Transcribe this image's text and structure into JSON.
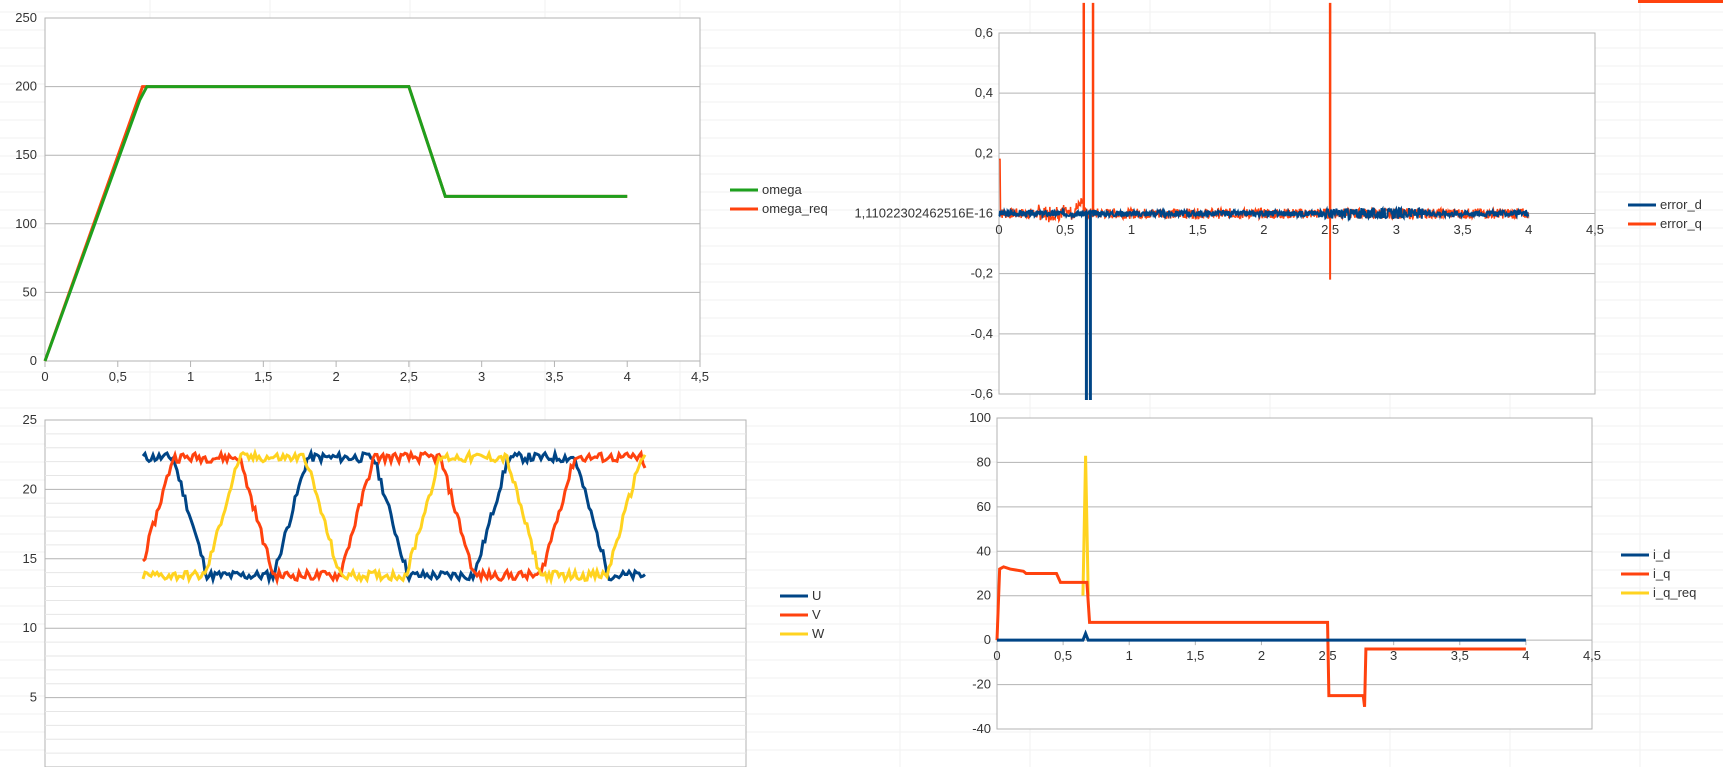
{
  "chart_data": [
    {
      "type": "line",
      "title": "",
      "xlabel": "",
      "ylabel": "",
      "xlim": [
        0,
        4.5
      ],
      "ylim": [
        0,
        250
      ],
      "x_tick_labels": [
        "0",
        "0,5",
        "1",
        "1,5",
        "2",
        "2,5",
        "3",
        "3,5",
        "4",
        "4,5"
      ],
      "y_tick_labels": [
        "0",
        "50",
        "100",
        "150",
        "200",
        "250"
      ],
      "grid": true,
      "legend": "right",
      "series": [
        {
          "name": "omega",
          "color": "#1ea01e",
          "x": [
            0,
            0.65,
            0.7,
            2.5,
            2.75,
            4
          ],
          "y": [
            0,
            190,
            200,
            200,
            120,
            120
          ]
        },
        {
          "name": "omega_req",
          "color": "#ff420e",
          "x": [
            0,
            0.67,
            2.5,
            2.75,
            4
          ],
          "y": [
            0,
            200,
            200,
            120,
            120
          ]
        }
      ]
    },
    {
      "type": "line",
      "title": "",
      "xlabel": "",
      "ylabel": "",
      "xlim": [
        0,
        4.5
      ],
      "ylim": [
        -0.6,
        0.6
      ],
      "x_tick_labels": [
        "0",
        "0,5",
        "1",
        "1,5",
        "2",
        "2,5",
        "3",
        "3,5",
        "4",
        "4,5"
      ],
      "y_tick_labels": [
        "-0,6",
        "-0,4",
        "-0,2",
        "1,11022302462516E-16",
        "0,2",
        "0,4",
        "0,6"
      ],
      "grid": true,
      "legend": "right",
      "series": [
        {
          "name": "error_d",
          "color": "#004586"
        },
        {
          "name": "error_q",
          "color": "#ff420e"
        }
      ]
    },
    {
      "type": "line",
      "title": "",
      "xlabel": "",
      "ylabel": "",
      "ylim": [
        0,
        25
      ],
      "y_tick_labels": [
        "5",
        "10",
        "15",
        "20",
        "25"
      ],
      "grid": true,
      "legend": "right",
      "series": [
        {
          "name": "U",
          "color": "#004586"
        },
        {
          "name": "V",
          "color": "#ff420e"
        },
        {
          "name": "W",
          "color": "#ffd320"
        }
      ]
    },
    {
      "type": "line",
      "title": "",
      "xlabel": "",
      "ylabel": "",
      "xlim": [
        0,
        4.5
      ],
      "ylim": [
        -40,
        100
      ],
      "x_tick_labels": [
        "0",
        "0,5",
        "1",
        "1,5",
        "2",
        "2,5",
        "3",
        "3,5",
        "4",
        "4,5"
      ],
      "y_tick_labels": [
        "-40",
        "-20",
        "0",
        "20",
        "40",
        "60",
        "80",
        "100"
      ],
      "grid": true,
      "legend": "right",
      "series": [
        {
          "name": "i_d",
          "color": "#004586",
          "x": [
            0,
            0.65,
            0.67,
            0.69,
            4
          ],
          "y": [
            0,
            0,
            3,
            0,
            0
          ]
        },
        {
          "name": "i_q",
          "color": "#ff420e",
          "x": [
            0,
            0.02,
            0.05,
            0.1,
            0.2,
            0.22,
            0.45,
            0.48,
            0.68,
            0.7,
            2.5,
            2.51,
            2.77,
            2.78,
            2.79,
            4
          ],
          "y": [
            0,
            32,
            33,
            32,
            31,
            30,
            30,
            26,
            26,
            8,
            8,
            -25,
            -25,
            -30,
            -4,
            -4
          ]
        },
        {
          "name": "i_q_req",
          "color": "#ffd320",
          "x": [
            0.65,
            0.67,
            0.69
          ],
          "y": [
            20,
            83,
            20
          ]
        }
      ]
    }
  ]
}
